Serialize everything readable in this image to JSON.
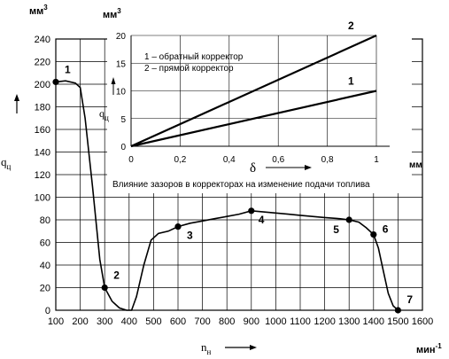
{
  "chart_data": [
    {
      "type": "line",
      "units": {
        "y": "мм3",
        "x": "мин-1"
      },
      "ylabel": "qц",
      "xlabel": "nн",
      "x_ticks": [
        100,
        200,
        300,
        400,
        500,
        600,
        700,
        800,
        900,
        1000,
        1100,
        1200,
        1300,
        1400,
        1500,
        1600
      ],
      "y_ticks": [
        0,
        20,
        40,
        60,
        80,
        100,
        120,
        140,
        160,
        180,
        200,
        220,
        240
      ],
      "xlim": [
        100,
        1600
      ],
      "ylim": [
        0,
        240
      ],
      "grid": true,
      "series": [
        {
          "values": [
            [
              100,
              202
            ],
            [
              140,
              203
            ],
            [
              180,
              201
            ],
            [
              200,
              197
            ],
            [
              220,
              170
            ],
            [
              250,
              110
            ],
            [
              280,
              45
            ],
            [
              300,
              20
            ],
            [
              330,
              8
            ],
            [
              360,
              2
            ],
            [
              390,
              0
            ],
            [
              410,
              0
            ],
            [
              430,
              12
            ],
            [
              460,
              40
            ],
            [
              490,
              62
            ],
            [
              520,
              68
            ],
            [
              560,
              70
            ],
            [
              600,
              74
            ],
            [
              650,
              77
            ],
            [
              700,
              79
            ],
            [
              750,
              81
            ],
            [
              800,
              83
            ],
            [
              850,
              85
            ],
            [
              900,
              88
            ],
            [
              950,
              87
            ],
            [
              1000,
              86
            ],
            [
              1050,
              85
            ],
            [
              1100,
              84
            ],
            [
              1150,
              83
            ],
            [
              1200,
              82
            ],
            [
              1260,
              81
            ],
            [
              1300,
              80
            ],
            [
              1340,
              78
            ],
            [
              1370,
              73
            ],
            [
              1400,
              67
            ],
            [
              1420,
              55
            ],
            [
              1440,
              35
            ],
            [
              1460,
              15
            ],
            [
              1480,
              4
            ],
            [
              1500,
              0
            ]
          ]
        }
      ],
      "markers": [
        {
          "label": "1",
          "x": 100,
          "y": 202
        },
        {
          "label": "2",
          "x": 300,
          "y": 20
        },
        {
          "label": "3",
          "x": 600,
          "y": 74
        },
        {
          "label": "4",
          "x": 900,
          "y": 88
        },
        {
          "label": "5",
          "x": 1300,
          "y": 80
        },
        {
          "label": "6",
          "x": 1400,
          "y": 67
        },
        {
          "label": "7",
          "x": 1500,
          "y": 0
        }
      ]
    },
    {
      "type": "line",
      "title": "Влияние зазоров в корректорах на изменение подачи топлива",
      "units": {
        "y": "мм3",
        "x": "мм"
      },
      "ylabel": "qц",
      "xlabel": "δ",
      "x_ticks": [
        "0",
        "0,2",
        "0,4",
        "0,6",
        "0,8",
        "1"
      ],
      "y_ticks": [
        0,
        5,
        10,
        15,
        20
      ],
      "xlim": [
        0,
        1
      ],
      "ylim": [
        0,
        20
      ],
      "grid": true,
      "legend_entries": [
        "1 – обратный корректор",
        "2 – прямой корректор"
      ],
      "series": [
        {
          "name": "1",
          "x": [
            0,
            1
          ],
          "values": [
            0,
            10
          ]
        },
        {
          "name": "2",
          "x": [
            0,
            1
          ],
          "values": [
            0,
            20
          ]
        }
      ]
    }
  ]
}
